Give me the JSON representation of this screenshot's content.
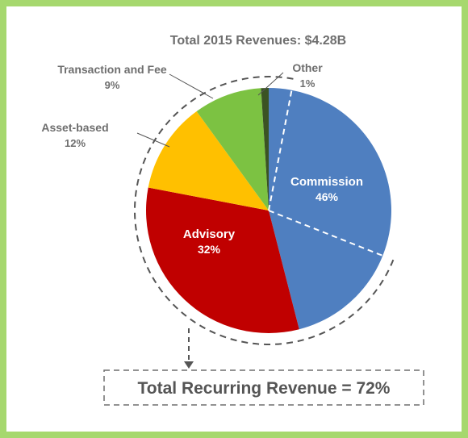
{
  "colors": {
    "page_border": "#a6d86e",
    "commission": "#4f7fc0",
    "advisory": "#c00000",
    "asset_based": "#ffc000",
    "transaction_and_fee": "#7cc242",
    "other": "#3b5323"
  },
  "chart_data": {
    "type": "pie",
    "title": "Total 2015 Revenues: $4.28B",
    "slices": [
      {
        "name": "Commission",
        "value": 46,
        "label": "46%"
      },
      {
        "name": "Advisory",
        "value": 32,
        "label": "32%"
      },
      {
        "name": "Asset-based",
        "value": 12,
        "label": "12%"
      },
      {
        "name": "Transaction and Fee",
        "value": 9,
        "label": "9%"
      },
      {
        "name": "Other",
        "value": 1,
        "label": "1%"
      }
    ],
    "annotation": "Total Recurring Revenue = 72%",
    "recurring_percent": 72
  }
}
